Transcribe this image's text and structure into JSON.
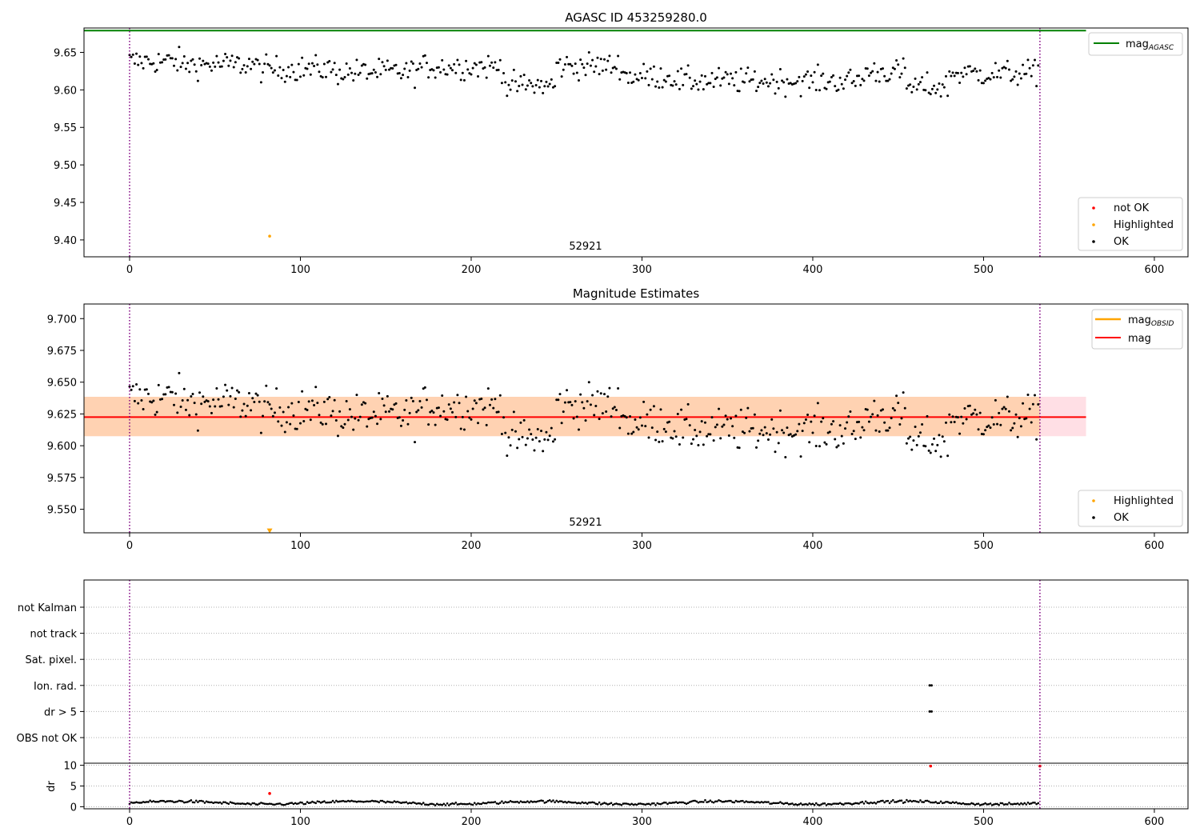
{
  "chart_data": [
    {
      "type": "scatter",
      "title": "AGASC ID 453259280.0",
      "xlim": [
        -26.7,
        619.7
      ],
      "ylim": [
        9.3775,
        9.6825
      ],
      "xticks": [
        0,
        100,
        200,
        300,
        400,
        500,
        600
      ],
      "yticks": [
        9.4,
        9.45,
        9.5,
        9.55,
        9.6,
        9.65
      ],
      "ytick_labels": [
        "9.40",
        "9.45",
        "9.50",
        "9.55",
        "9.60",
        "9.65"
      ],
      "obsid_label": "52921",
      "obsid_label_x": 267,
      "vlines_dotted": [
        0,
        533
      ],
      "hline": {
        "y": 9.679,
        "x_end": 560,
        "color": "#008000"
      },
      "highlighted_points": [
        {
          "x": 82,
          "y": 9.405
        }
      ],
      "ok_series": {
        "name": "OK",
        "n": 533,
        "x_start": 0,
        "x_step": 1
      },
      "legend_upper": {
        "position": "upper-right",
        "entries": [
          {
            "label_main": "mag",
            "label_sub": "AGASC",
            "color": "#008000",
            "kind": "line"
          }
        ]
      },
      "legend_lower": {
        "position": "lower-right",
        "entries": [
          {
            "label": "not OK",
            "color": "#ff0000"
          },
          {
            "label": "Highlighted",
            "color": "#ffa500"
          },
          {
            "label": "OK",
            "color": "#000000"
          }
        ]
      }
    },
    {
      "type": "scatter",
      "title": "Magnitude Estimates",
      "xlim": [
        -26.7,
        619.7
      ],
      "ylim": [
        9.5315,
        9.7115
      ],
      "xticks": [
        0,
        100,
        200,
        300,
        400,
        500,
        600
      ],
      "yticks": [
        9.55,
        9.575,
        9.6,
        9.625,
        9.65,
        9.675,
        9.7
      ],
      "ytick_labels": [
        "9.550",
        "9.575",
        "9.600",
        "9.625",
        "9.650",
        "9.675",
        "9.700"
      ],
      "obsid_label": "52921",
      "obsid_label_x": 267,
      "vlines_dotted": [
        0,
        533
      ],
      "mean_line": {
        "y": 9.6225,
        "x_end": 560,
        "color": "#ff0000"
      },
      "band_outer": {
        "y_low": 9.6075,
        "y_high": 9.6385,
        "x_end": 560,
        "color": "#ffc0cb"
      },
      "band_inner": {
        "y_low": 9.6075,
        "y_high": 9.6385,
        "x_end": 533,
        "color": "#ffa500"
      },
      "highlighted_points": [
        {
          "x": 82,
          "y": 9.533,
          "marker": "triangle-down"
        }
      ],
      "ok_series": {
        "name": "OK",
        "n": 533,
        "x_start": 0,
        "x_step": 1
      },
      "legend_upper": {
        "position": "upper-right",
        "entries": [
          {
            "label_main": "mag",
            "label_sub": "OBSID",
            "color": "#ffa500",
            "kind": "line"
          },
          {
            "label_main": "mag",
            "label_sub": "",
            "color": "#ff0000",
            "kind": "line"
          }
        ]
      },
      "legend_lower": {
        "position": "lower-right",
        "entries": [
          {
            "label": "Highlighted",
            "color": "#ffa500"
          },
          {
            "label": "OK",
            "color": "#000000"
          }
        ]
      }
    },
    {
      "type": "scatter",
      "title": "",
      "xlim": [
        -26.7,
        619.7
      ],
      "xticks": [
        0,
        100,
        200,
        300,
        400,
        500,
        600
      ],
      "flag_labels": [
        "not Kalman",
        "not track",
        "Sat. pixel.",
        "Ion. rad.",
        "dr > 5",
        "OBS not OK"
      ],
      "flag_points": {
        "Ion. rad.": [
          469
        ],
        "dr > 5": [
          469
        ]
      },
      "vlines_dotted": [
        0,
        533
      ],
      "dr_panel": {
        "ylabel": "dr",
        "ylim": [
          -0.5,
          10.5
        ],
        "yticks": [
          0,
          5,
          10
        ],
        "ytick_labels": [
          "0",
          "5",
          "10"
        ],
        "ok_series": {
          "name": "OK",
          "n": 533,
          "x_start": 0,
          "x_step": 1
        },
        "red_points": [
          {
            "x": 82,
            "y": 3.2
          },
          {
            "x": 469,
            "y": 9.8
          },
          {
            "x": 533,
            "y": 9.8
          }
        ]
      }
    }
  ]
}
